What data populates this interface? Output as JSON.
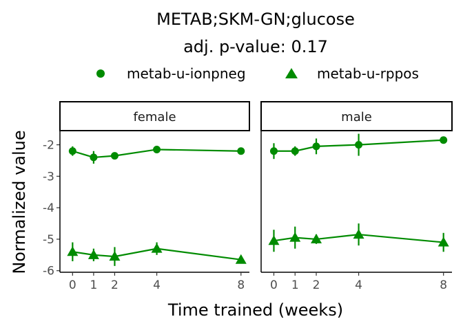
{
  "chart_data": {
    "type": "line",
    "title": "METAB;SKM-GN;glucose",
    "subtitle": "adj. p-value: 0.17",
    "xlabel": "Time trained (weeks)",
    "ylabel": "Normalized value",
    "x_ticks": [
      0,
      1,
      2,
      4,
      8
    ],
    "y_ticks": [
      -2,
      -3,
      -4,
      -5,
      -6
    ],
    "ylim": [
      -6.05,
      -1.55
    ],
    "legend": {
      "position": "top",
      "entries": [
        {
          "label": "metab-u-ionpneg",
          "marker": "circle"
        },
        {
          "label": "metab-u-rppos",
          "marker": "triangle"
        }
      ]
    },
    "color": "#008B00",
    "grid": false,
    "panels": [
      {
        "label": "female",
        "series": [
          {
            "name": "metab-u-ionpneg",
            "marker": "circle",
            "x": [
              0,
              1,
              2,
              4,
              8
            ],
            "y": [
              -2.2,
              -2.4,
              -2.35,
              -2.15,
              -2.2
            ],
            "err": [
              0.15,
              0.2,
              0.1,
              0.12,
              0.06
            ]
          },
          {
            "name": "metab-u-rppos",
            "marker": "triangle",
            "x": [
              0,
              1,
              2,
              4,
              8
            ],
            "y": [
              -5.4,
              -5.5,
              -5.55,
              -5.3,
              -5.65
            ],
            "err": [
              0.3,
              0.2,
              0.3,
              0.2,
              0.05
            ]
          }
        ]
      },
      {
        "label": "male",
        "series": [
          {
            "name": "metab-u-ionpneg",
            "marker": "circle",
            "x": [
              0,
              1,
              2,
              4,
              8
            ],
            "y": [
              -2.2,
              -2.2,
              -2.05,
              -2.0,
              -1.85
            ],
            "err": [
              0.25,
              0.15,
              0.25,
              0.35,
              0.05
            ]
          },
          {
            "name": "metab-u-rppos",
            "marker": "triangle",
            "x": [
              0,
              1,
              2,
              4,
              8
            ],
            "y": [
              -5.05,
              -4.95,
              -5.0,
              -4.85,
              -5.1
            ],
            "err": [
              0.35,
              0.35,
              0.15,
              0.35,
              0.3
            ]
          }
        ]
      }
    ]
  }
}
